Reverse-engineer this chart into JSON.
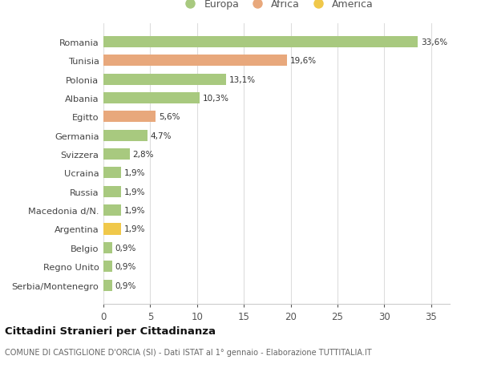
{
  "categories": [
    "Romania",
    "Tunisia",
    "Polonia",
    "Albania",
    "Egitto",
    "Germania",
    "Svizzera",
    "Ucraina",
    "Russia",
    "Macedonia d/N.",
    "Argentina",
    "Belgio",
    "Regno Unito",
    "Serbia/Montenegro"
  ],
  "values": [
    33.6,
    19.6,
    13.1,
    10.3,
    5.6,
    4.7,
    2.8,
    1.9,
    1.9,
    1.9,
    1.9,
    0.9,
    0.9,
    0.9
  ],
  "labels": [
    "33,6%",
    "19,6%",
    "13,1%",
    "10,3%",
    "5,6%",
    "4,7%",
    "2,8%",
    "1,9%",
    "1,9%",
    "1,9%",
    "1,9%",
    "0,9%",
    "0,9%",
    "0,9%"
  ],
  "colors": [
    "#a8c97f",
    "#e8a87c",
    "#a8c97f",
    "#a8c97f",
    "#e8a87c",
    "#a8c97f",
    "#a8c97f",
    "#a8c97f",
    "#a8c97f",
    "#a8c97f",
    "#f0c84a",
    "#a8c97f",
    "#a8c97f",
    "#a8c97f"
  ],
  "legend": [
    {
      "label": "Europa",
      "color": "#a8c97f"
    },
    {
      "label": "Africa",
      "color": "#e8a87c"
    },
    {
      "label": "America",
      "color": "#f0c84a"
    }
  ],
  "title": "Cittadini Stranieri per Cittadinanza",
  "subtitle": "COMUNE DI CASTIGLIONE D'ORCIA (SI) - Dati ISTAT al 1° gennaio - Elaborazione TUTTITALIA.IT",
  "xlim": [
    0,
    37
  ],
  "xticks": [
    0,
    5,
    10,
    15,
    20,
    25,
    30,
    35
  ],
  "bg_color": "#ffffff",
  "grid_color": "#dddddd"
}
